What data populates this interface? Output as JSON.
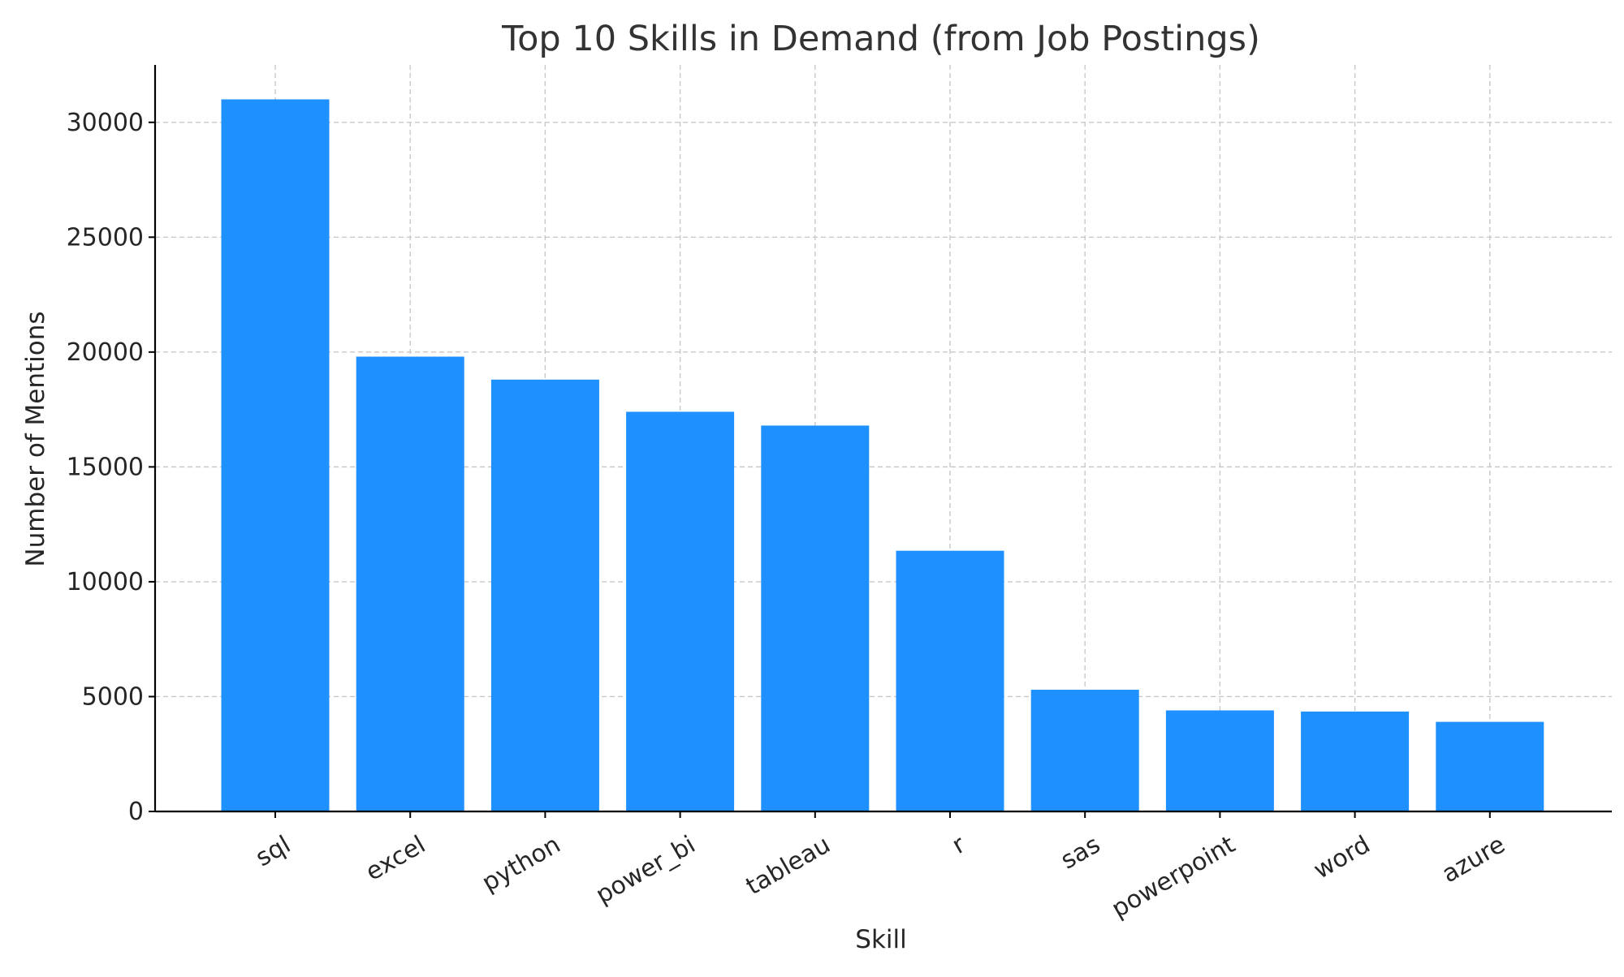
{
  "chart_data": {
    "type": "bar",
    "title": "Top 10 Skills in Demand (from Job Postings)",
    "xlabel": "Skill",
    "ylabel": "Number of Mentions",
    "categories": [
      "sql",
      "excel",
      "python",
      "power_bi",
      "tableau",
      "r",
      "sas",
      "powerpoint",
      "word",
      "azure"
    ],
    "values": [
      31000,
      19800,
      18800,
      17400,
      16800,
      11350,
      5300,
      4400,
      4350,
      3900
    ],
    "ylim": [
      0,
      32500
    ],
    "yticks": [
      0,
      5000,
      10000,
      15000,
      20000,
      25000,
      30000
    ],
    "bar_color": "#1e90ff",
    "grid": true,
    "x_tick_rotation": 30
  }
}
